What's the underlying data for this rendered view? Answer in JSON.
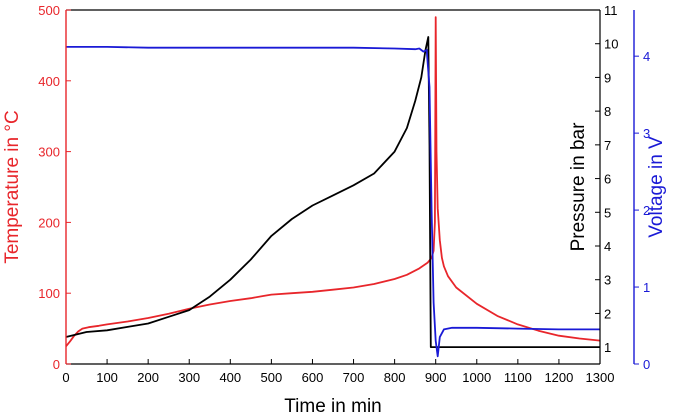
{
  "chart_data": {
    "type": "line",
    "title": "",
    "xlabel": "Time in min",
    "xlim": [
      0,
      1300
    ],
    "x_ticks": [
      0,
      100,
      200,
      300,
      400,
      500,
      600,
      700,
      800,
      900,
      1000,
      1100,
      1200,
      1300
    ],
    "grid": false,
    "axes": {
      "left": {
        "label": "Temperature in °C",
        "lim": [
          0,
          500
        ],
        "ticks": [
          0,
          100,
          200,
          300,
          400,
          500
        ],
        "color": "#e8262b"
      },
      "right_inner": {
        "label": "Pressure in bar",
        "lim": [
          0.5,
          11
        ],
        "ticks": [
          1,
          2,
          3,
          4,
          5,
          6,
          7,
          8,
          9,
          10,
          11
        ],
        "color": "#000000"
      },
      "right_outer": {
        "label": "Voltage in V",
        "lim": [
          0,
          4.6
        ],
        "ticks": [
          0,
          1,
          2,
          3,
          4
        ],
        "color": "#1a1ad6"
      }
    },
    "series": [
      {
        "axis": "left",
        "color": "#e8262b",
        "x": [
          0,
          10,
          20,
          30,
          40,
          55,
          80,
          100,
          150,
          200,
          250,
          300,
          350,
          400,
          450,
          480,
          500,
          550,
          600,
          650,
          700,
          750,
          800,
          830,
          860,
          880,
          890,
          895,
          898,
          900,
          902,
          905,
          910,
          915,
          920,
          930,
          950,
          1000,
          1050,
          1100,
          1150,
          1200,
          1250,
          1300
        ],
        "values": [
          25,
          32,
          40,
          46,
          50,
          52,
          54,
          56,
          60,
          65,
          71,
          78,
          84,
          89,
          93,
          96,
          98,
          100,
          102,
          105,
          108,
          113,
          120,
          126,
          135,
          143,
          150,
          160,
          200,
          490,
          300,
          220,
          175,
          150,
          138,
          124,
          108,
          85,
          68,
          56,
          47,
          40,
          36,
          33
        ]
      },
      {
        "axis": "right_inner",
        "color": "#000000",
        "x": [
          0,
          50,
          100,
          150,
          200,
          250,
          300,
          350,
          400,
          450,
          500,
          550,
          600,
          650,
          700,
          750,
          800,
          830,
          850,
          865,
          875,
          882,
          885,
          888,
          900,
          1000,
          1100,
          1200,
          1300
        ],
        "values": [
          1.3,
          1.45,
          1.5,
          1.6,
          1.7,
          1.9,
          2.1,
          2.5,
          3.0,
          3.6,
          4.3,
          4.8,
          5.2,
          5.5,
          5.8,
          6.15,
          6.8,
          7.5,
          8.3,
          9.0,
          9.8,
          10.2,
          7.0,
          1.0,
          1.0,
          1.0,
          1.0,
          1.0,
          1.0
        ]
      },
      {
        "axis": "right_outer",
        "color": "#1a1ad6",
        "x": [
          0,
          100,
          200,
          300,
          400,
          500,
          600,
          700,
          800,
          850,
          860,
          870,
          878,
          885,
          890,
          895,
          900,
          905,
          910,
          920,
          940,
          1000,
          1100,
          1200,
          1300
        ],
        "values": [
          4.12,
          4.12,
          4.11,
          4.11,
          4.11,
          4.11,
          4.11,
          4.11,
          4.1,
          4.09,
          4.1,
          4.06,
          4.08,
          3.6,
          2.0,
          0.8,
          0.3,
          0.1,
          0.35,
          0.45,
          0.47,
          0.47,
          0.46,
          0.45,
          0.45
        ]
      }
    ]
  }
}
